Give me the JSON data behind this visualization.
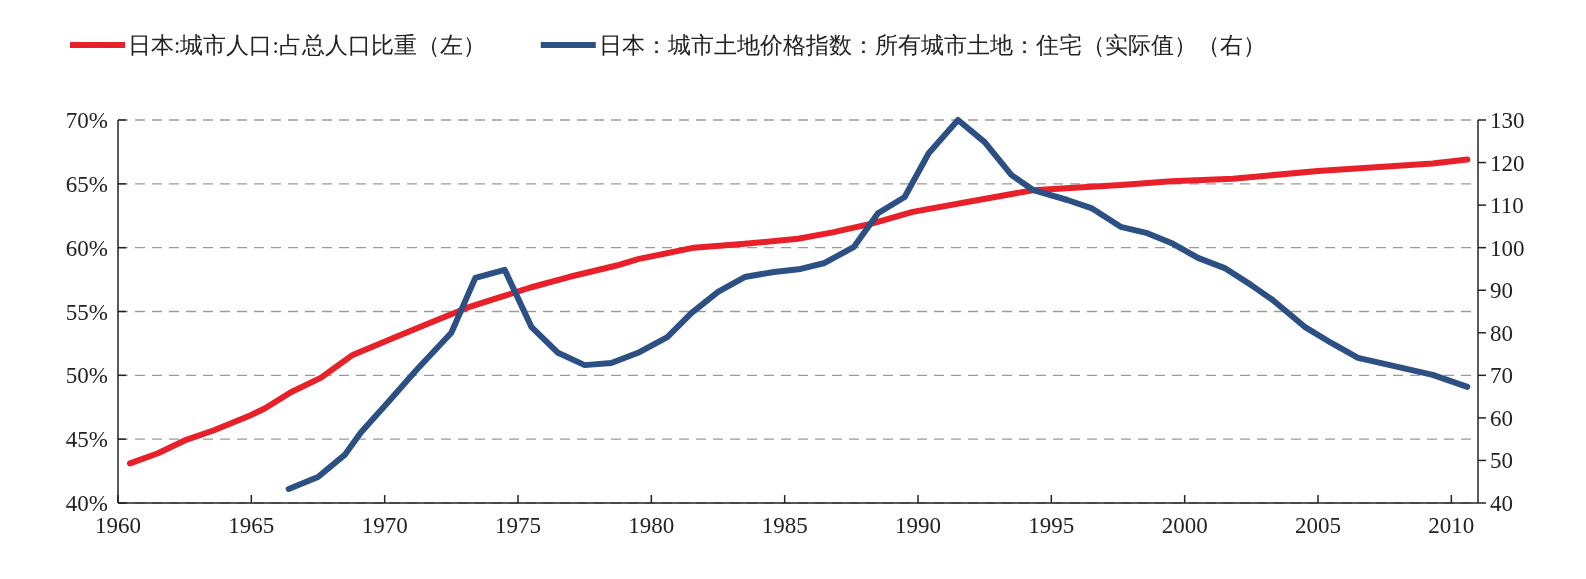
{
  "chart_data": {
    "type": "line",
    "xlim": [
      1960,
      2011
    ],
    "xticks": [
      1960,
      1965,
      1970,
      1975,
      1980,
      1985,
      1990,
      1995,
      2000,
      2005,
      2010
    ],
    "ylim": [
      40,
      70
    ],
    "yticks": [
      {
        "value": 40,
        "label": "40%"
      },
      {
        "value": 45,
        "label": "45%"
      },
      {
        "value": 50,
        "label": "50%"
      },
      {
        "value": 55,
        "label": "55%"
      },
      {
        "value": 60,
        "label": "60%"
      },
      {
        "value": 65,
        "label": "65%"
      },
      {
        "value": 70,
        "label": "70%"
      }
    ],
    "y2lim": [
      40,
      130
    ],
    "y2ticks": [
      40,
      50,
      60,
      70,
      80,
      90,
      100,
      110,
      120,
      130
    ],
    "grid": "y",
    "legend": "top",
    "series": [
      {
        "name": "日本:城市人口:占总人口比重（左）",
        "color": "#e8202a",
        "axis": "y",
        "x": [
          1960.45,
          1961.5,
          1962.5,
          1963.6,
          1965.0,
          1965.5,
          1966.5,
          1967.6,
          1968.8,
          1970.3,
          1971.8,
          1973.1,
          1974.3,
          1975.5,
          1976.9,
          1978.7,
          1979.5,
          1981.6,
          1983.5,
          1985.5,
          1986.8,
          1988.3,
          1989.8,
          1991.9,
          1994.3,
          1997.6,
          1999.5,
          2001.8,
          2005.0,
          2009.3,
          2010.6
        ],
        "values": [
          43.1,
          43.9,
          44.9,
          45.7,
          46.9,
          47.4,
          48.7,
          49.8,
          51.6,
          52.9,
          54.2,
          55.3,
          56.1,
          56.9,
          57.7,
          58.6,
          59.1,
          60.0,
          60.3,
          60.7,
          61.2,
          61.9,
          62.8,
          63.6,
          64.5,
          64.9,
          65.2,
          65.4,
          66.0,
          66.6,
          66.9
        ]
      },
      {
        "name": "日本：城市土地价格指数：所有城市土地：住宅（实际值）（右）",
        "color": "#2c4f84",
        "axis": "y2",
        "x": [
          1966.4,
          1967.5,
          1968.5,
          1969.1,
          1970.1,
          1971.2,
          1972.5,
          1973.4,
          1974.5,
          1975.5,
          1976.5,
          1977.5,
          1978.5,
          1979.5,
          1980.6,
          1981.5,
          1982.5,
          1983.5,
          1984.6,
          1985.6,
          1986.5,
          1987.6,
          1988.5,
          1989.5,
          1990.4,
          1991.5,
          1992.5,
          1993.5,
          1994.3,
          1995.6,
          1996.5,
          1997.6,
          1998.6,
          1999.5,
          2000.5,
          2001.5,
          2002.5,
          2003.3,
          2004.5,
          2005.5,
          2006.5,
          2007.7,
          2009.3,
          2010.6
        ],
        "values": [
          43.3,
          46.1,
          51.3,
          56.5,
          63.5,
          71.3,
          80.0,
          92.9,
          94.8,
          81.4,
          75.3,
          72.4,
          72.9,
          75.3,
          79.0,
          84.6,
          89.6,
          93.1,
          94.3,
          95.0,
          96.4,
          100.2,
          108.1,
          111.9,
          122.2,
          130.0,
          124.8,
          117.1,
          113.6,
          111.2,
          109.3,
          104.9,
          103.4,
          101.1,
          97.6,
          95.2,
          91.2,
          87.7,
          81.4,
          77.6,
          74.1,
          72.4,
          70.1,
          67.3
        ]
      }
    ]
  }
}
